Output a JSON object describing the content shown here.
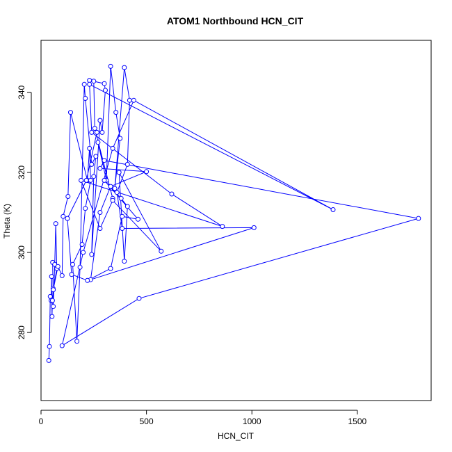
{
  "chart_data": {
    "type": "line",
    "title": "ATOM1 Northbound HCN_CIT",
    "xlabel": "HCN_CIT",
    "ylabel": "Theta (K)",
    "xlim": [
      0,
      1850
    ],
    "ylim": [
      263,
      353
    ],
    "xticks": [
      0,
      500,
      1000,
      1500
    ],
    "yticks": [
      280,
      300,
      320,
      340
    ],
    "grid": false,
    "marker": "open-circle",
    "colors": {
      "series": "#0000ff",
      "axis": "#000000"
    },
    "series": [
      {
        "values": [
          [
            37,
            273
          ],
          [
            40,
            276.5
          ],
          [
            44,
            289
          ],
          [
            48,
            288
          ],
          [
            50,
            294
          ],
          [
            52,
            284
          ],
          [
            54,
            288
          ],
          [
            57,
            291
          ],
          [
            55,
            297.5
          ],
          [
            58,
            286.5
          ],
          [
            65,
            297
          ],
          [
            70,
            307.2
          ],
          [
            75,
            296
          ],
          [
            58,
            290.7
          ],
          [
            80,
            296.5
          ],
          [
            100,
            294.2
          ],
          [
            105,
            309
          ],
          [
            128,
            314
          ],
          [
            140,
            335
          ],
          [
            220,
            318
          ],
          [
            230,
            326
          ],
          [
            235,
            318
          ],
          [
            210,
            311
          ],
          [
            195,
            302
          ],
          [
            150,
            297
          ],
          [
            170,
            277.8
          ],
          [
            185,
            296.3
          ],
          [
            205,
            342
          ],
          [
            210,
            338.5
          ],
          [
            240,
            322
          ],
          [
            260,
            324
          ],
          [
            250,
            319
          ],
          [
            240,
            299.5
          ],
          [
            280,
            333
          ],
          [
            290,
            330
          ],
          [
            305,
            340.5
          ],
          [
            300,
            342.2
          ],
          [
            230,
            343
          ],
          [
            250,
            342.8
          ],
          [
            255,
            331
          ],
          [
            340,
            313.5
          ],
          [
            270,
            327.5
          ],
          [
            310,
            318
          ],
          [
            330,
            346.5
          ],
          [
            355,
            335
          ],
          [
            375,
            328.5
          ],
          [
            350,
            316
          ],
          [
            395,
            346.2
          ],
          [
            420,
            338
          ],
          [
            410,
            322
          ],
          [
            360,
            315
          ],
          [
            385,
            306
          ],
          [
            1010,
            306.2
          ],
          [
            235,
            293.2
          ],
          [
            280,
            310
          ],
          [
            330,
            316.5
          ],
          [
            500,
            320.2
          ],
          [
            280,
            321
          ],
          [
            300,
            323
          ],
          [
            1790,
            308.5
          ],
          [
            465,
            288.5
          ],
          [
            100,
            276.7
          ],
          [
            200,
            300
          ],
          [
            340,
            326
          ],
          [
            440,
            338
          ],
          [
            1385,
            310.7
          ],
          [
            230,
            342
          ],
          [
            240,
            330
          ],
          [
            620,
            314.6
          ],
          [
            860,
            306.5
          ],
          [
            190,
            318
          ],
          [
            280,
            306
          ],
          [
            340,
            313
          ],
          [
            570,
            300.3
          ],
          [
            370,
            320
          ],
          [
            395,
            297.8
          ],
          [
            410,
            311.5
          ],
          [
            380,
            313.5
          ],
          [
            300,
            318
          ],
          [
            460,
            308.3
          ],
          [
            385,
            309
          ],
          [
            330,
            296
          ],
          [
            220,
            293
          ],
          [
            145,
            294.5
          ],
          [
            125,
            308.5
          ],
          [
            215,
            318
          ],
          [
            265,
            330
          ]
        ]
      }
    ]
  }
}
